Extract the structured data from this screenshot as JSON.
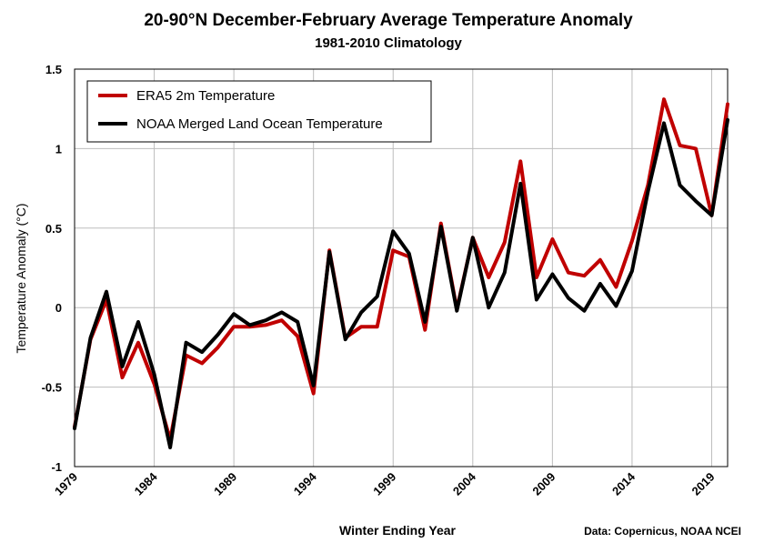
{
  "chart_data": {
    "type": "line",
    "title": "20-90°N December-February Average Temperature Anomaly",
    "subtitle": "1981-2010 Climatology",
    "xlabel": "Winter Ending Year",
    "ylabel": "Temperature Anomaly (°C)",
    "source": "Data: Copernicus, NOAA NCEI",
    "xlim": [
      1979,
      2020
    ],
    "ylim": [
      -1,
      1.5
    ],
    "yticks": [
      -1,
      -0.5,
      0,
      0.5,
      1,
      1.5
    ],
    "ytick_labels": [
      "-1",
      "-0.5",
      "0",
      "0.5",
      "1",
      "1.5"
    ],
    "xticks": [
      1979,
      1984,
      1989,
      1994,
      1999,
      2004,
      2009,
      2014,
      2019
    ],
    "xtick_labels": [
      "1979",
      "1984",
      "1989",
      "1994",
      "1999",
      "2004",
      "2009",
      "2014",
      "2019"
    ],
    "grid": true,
    "legend_position": "top-left",
    "x": [
      1979,
      1980,
      1981,
      1982,
      1983,
      1984,
      1985,
      1986,
      1987,
      1988,
      1989,
      1990,
      1991,
      1992,
      1993,
      1994,
      1995,
      1996,
      1997,
      1998,
      1999,
      2000,
      2001,
      2002,
      2003,
      2004,
      2005,
      2006,
      2007,
      2008,
      2009,
      2010,
      2011,
      2012,
      2013,
      2014,
      2015,
      2016,
      2017,
      2018,
      2019,
      2020
    ],
    "series": [
      {
        "name": "ERA5 2m Temperature",
        "color": "#c00000",
        "values": [
          -0.75,
          -0.2,
          0.05,
          -0.44,
          -0.22,
          -0.48,
          -0.83,
          -0.3,
          -0.35,
          -0.25,
          -0.12,
          -0.12,
          -0.11,
          -0.08,
          -0.18,
          -0.54,
          0.36,
          -0.19,
          -0.12,
          -0.12,
          0.36,
          0.32,
          -0.14,
          0.53,
          -0.01,
          0.44,
          0.19,
          0.41,
          0.92,
          0.19,
          0.43,
          0.22,
          0.2,
          0.3,
          0.13,
          0.42,
          0.77,
          1.31,
          1.02,
          1.0,
          0.58,
          1.28
        ]
      },
      {
        "name": "NOAA Merged Land Ocean Temperature",
        "color": "#000000",
        "values": [
          -0.76,
          -0.19,
          0.1,
          -0.37,
          -0.09,
          -0.42,
          -0.88,
          -0.22,
          -0.28,
          -0.17,
          -0.04,
          -0.11,
          -0.08,
          -0.03,
          -0.09,
          -0.49,
          0.35,
          -0.2,
          -0.03,
          0.07,
          0.48,
          0.34,
          -0.09,
          0.51,
          -0.02,
          0.44,
          0.0,
          0.22,
          0.78,
          0.05,
          0.21,
          0.06,
          -0.02,
          0.15,
          0.01,
          0.23,
          0.73,
          1.16,
          0.77,
          0.67,
          0.58,
          1.18
        ]
      }
    ]
  }
}
